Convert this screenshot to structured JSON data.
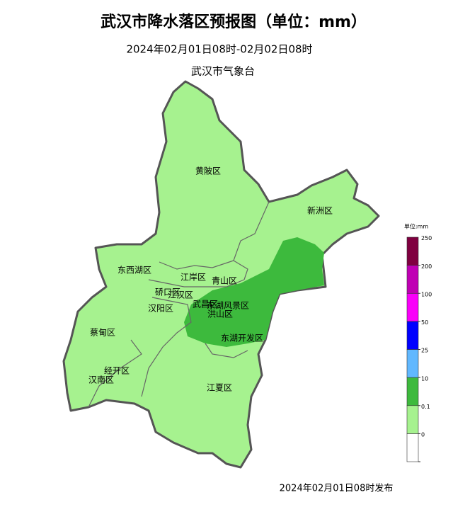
{
  "title": "武汉市降水落区预报图（单位：mm）",
  "subtitle": "2024年02月01日08时-02月02日08时",
  "agency": "武汉市气象台",
  "districts": [
    "黄陂区",
    "新洲区",
    "东西湖区",
    "江岸区",
    "青山区",
    "硚口区",
    "江汉区",
    "汉阳区",
    "武昌区",
    "东湖风景区",
    "洪山区",
    "蔡甸区",
    "东湖开发区",
    "经开区",
    "汉南区",
    "江夏区"
  ],
  "legend": {
    "title": "单位:mm",
    "ticks": [
      0,
      0.1,
      10,
      25,
      50,
      100,
      200,
      250
    ],
    "colors": [
      "#ffffff",
      "#a6f28f",
      "#3dba3d",
      "#61b8ff",
      "#0000ff",
      "#fa00fa",
      "#c000b4",
      "#800040"
    ]
  },
  "footer": "2024年02月01日08时发布"
}
